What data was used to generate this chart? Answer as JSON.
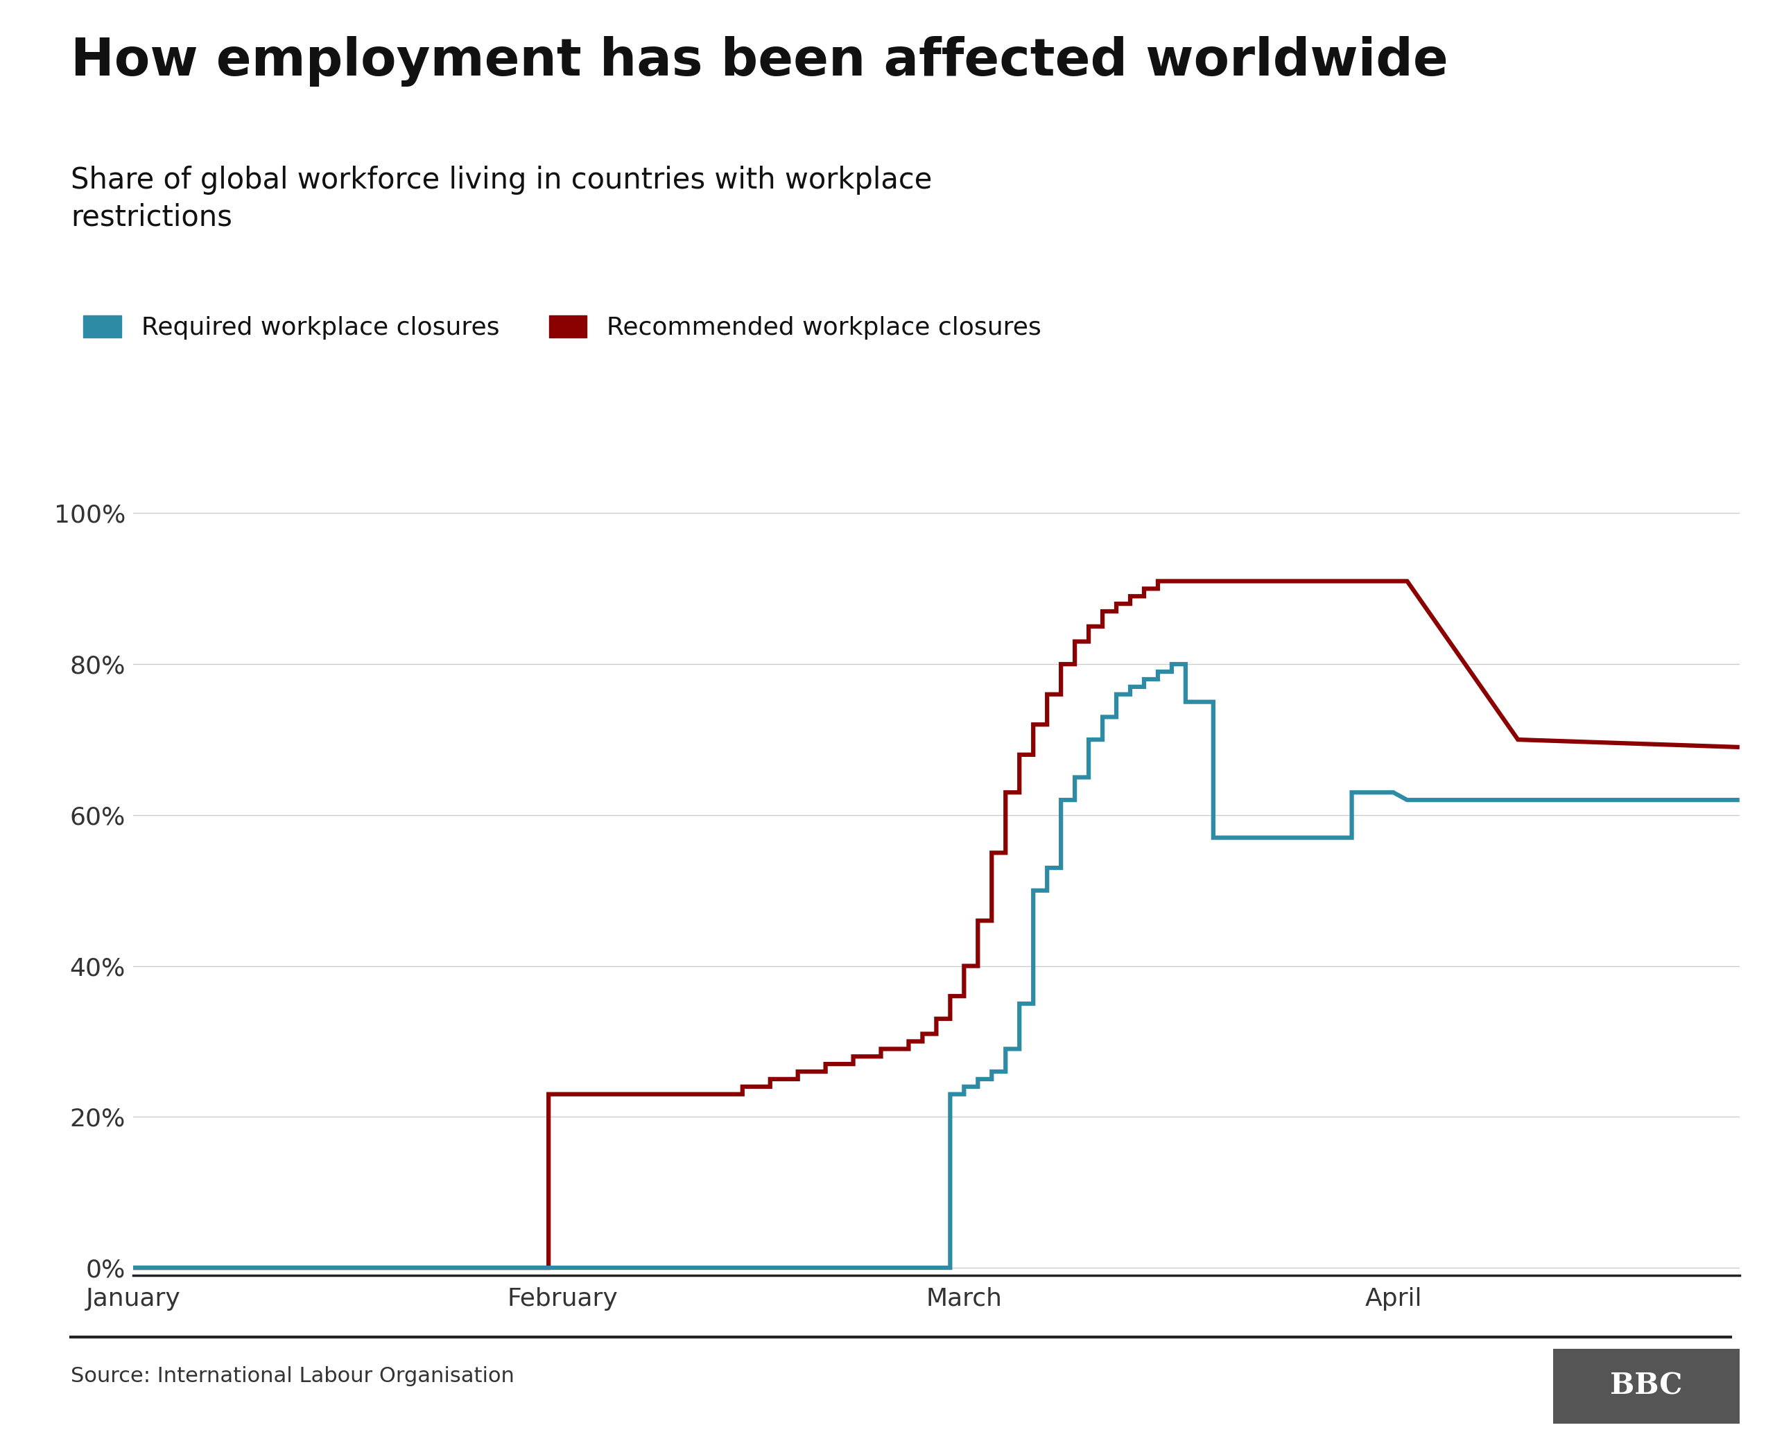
{
  "title": "How employment has been affected worldwide",
  "subtitle": "Share of global workforce living in countries with workplace\nrestrictions",
  "source": "Source: International Labour Organisation",
  "legend_required": "Required workplace closures",
  "legend_recommended": "Recommended workplace closures",
  "color_required": "#2e8ba5",
  "color_recommended": "#8b0000",
  "background_color": "#ffffff",
  "yticks": [
    0,
    20,
    40,
    60,
    80,
    100
  ],
  "ylim": [
    -1,
    105
  ],
  "recommended_x": [
    0,
    30,
    30,
    31,
    44,
    44,
    46,
    46,
    48,
    48,
    50,
    50,
    52,
    52,
    54,
    54,
    56,
    56,
    57,
    57,
    58,
    58,
    59,
    59,
    60,
    60,
    61,
    61,
    62,
    62,
    63,
    63,
    64,
    64,
    65,
    65,
    66,
    66,
    67,
    67,
    68,
    68,
    69,
    69,
    70,
    70,
    71,
    71,
    72,
    72,
    73,
    73,
    74,
    74,
    75,
    75,
    76,
    76,
    77,
    77,
    78,
    78,
    79,
    79,
    80,
    80,
    81,
    81,
    82,
    82,
    83,
    83,
    84,
    84,
    85,
    85,
    86,
    86,
    87,
    87,
    88,
    88,
    89,
    89,
    90,
    90,
    91,
    91,
    92,
    92,
    100,
    100,
    116
  ],
  "recommended_y": [
    0,
    0,
    23,
    23,
    23,
    24,
    24,
    25,
    25,
    26,
    26,
    27,
    27,
    28,
    28,
    29,
    29,
    30,
    30,
    31,
    31,
    33,
    33,
    36,
    36,
    40,
    40,
    46,
    46,
    55,
    55,
    63,
    63,
    68,
    68,
    72,
    72,
    76,
    76,
    80,
    80,
    83,
    83,
    85,
    85,
    87,
    87,
    88,
    88,
    89,
    89,
    90,
    90,
    91,
    91,
    91,
    91,
    91,
    91,
    91,
    91,
    91,
    91,
    91,
    91,
    91,
    91,
    91,
    91,
    91,
    91,
    91,
    91,
    91,
    91,
    91,
    91,
    91,
    91,
    91,
    91,
    91,
    91,
    91,
    91,
    91,
    91,
    91,
    91,
    91,
    70,
    70,
    69
  ],
  "required_x": [
    0,
    59,
    59,
    60,
    60,
    61,
    61,
    62,
    62,
    63,
    63,
    64,
    64,
    65,
    65,
    66,
    66,
    67,
    67,
    68,
    68,
    69,
    69,
    70,
    70,
    71,
    71,
    72,
    72,
    73,
    73,
    74,
    74,
    75,
    75,
    76,
    76,
    77,
    77,
    78,
    78,
    79,
    79,
    80,
    80,
    81,
    81,
    82,
    82,
    83,
    83,
    84,
    84,
    85,
    85,
    86,
    86,
    87,
    87,
    88,
    88,
    89,
    89,
    90,
    90,
    91,
    91,
    92,
    92,
    93,
    93,
    94,
    94,
    95,
    95,
    96,
    96,
    97,
    97,
    98,
    98,
    99,
    99,
    100,
    100,
    116
  ],
  "required_y": [
    0,
    0,
    23,
    23,
    24,
    24,
    25,
    25,
    26,
    26,
    29,
    29,
    35,
    35,
    50,
    50,
    53,
    53,
    62,
    62,
    65,
    65,
    70,
    70,
    73,
    73,
    76,
    76,
    77,
    77,
    78,
    78,
    79,
    79,
    80,
    80,
    75,
    75,
    75,
    75,
    57,
    57,
    57,
    57,
    57,
    57,
    57,
    57,
    57,
    57,
    57,
    57,
    57,
    57,
    57,
    57,
    57,
    57,
    57,
    57,
    63,
    63,
    63,
    63,
    63,
    63,
    63,
    62,
    62,
    62,
    62,
    62,
    62,
    62,
    62,
    62,
    62,
    62,
    62,
    62,
    62,
    62,
    62,
    62,
    62,
    62
  ],
  "xmin": 0,
  "xmax": 116,
  "xtick_positions": [
    0,
    31,
    60,
    91
  ],
  "xtick_labels": [
    "January",
    "February",
    "March",
    "April"
  ]
}
